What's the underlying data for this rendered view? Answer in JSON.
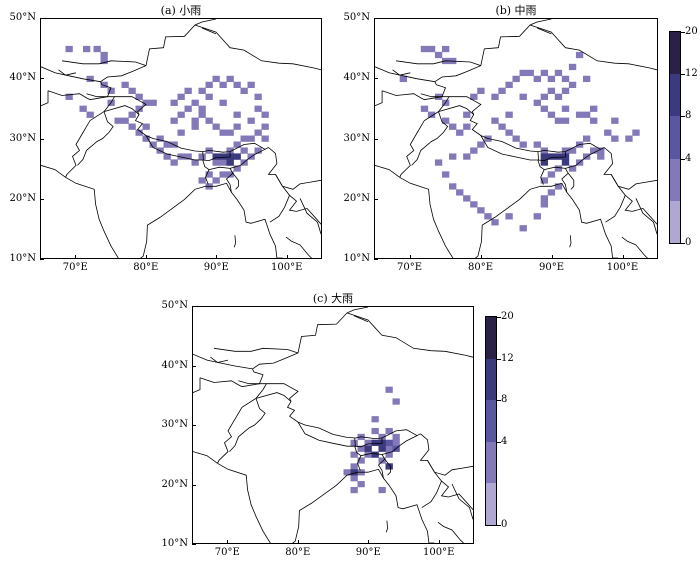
{
  "panels": {
    "a": {
      "title": "(a) 小雨"
    },
    "b": {
      "title": "(b) 中雨"
    },
    "c": {
      "title": "(c) 大雨"
    }
  },
  "axes": {
    "lat_labels": [
      "50°N",
      "40°N",
      "30°N",
      "20°N",
      "10°N"
    ],
    "lon_labels": [
      "70°E",
      "80°E",
      "90°E",
      "100°E"
    ],
    "lat_range": [
      10,
      50
    ],
    "lon_range": [
      65,
      105
    ]
  },
  "colorbar": {
    "labels": [
      "20",
      "12",
      "8",
      "4",
      "0"
    ],
    "colors": [
      "#2b2146",
      "#3c3a7e",
      "#5a56a0",
      "#8479b8",
      "#b1a7d3"
    ]
  },
  "map_data": {
    "panel_a_cells": [
      [
        69,
        45
      ],
      [
        71.5,
        45
      ],
      [
        73,
        45
      ],
      [
        74,
        44
      ],
      [
        74,
        43
      ],
      [
        69,
        37
      ],
      [
        72,
        40
      ],
      [
        74,
        39
      ],
      [
        75,
        38
      ],
      [
        77,
        39
      ],
      [
        78,
        38
      ],
      [
        79,
        37
      ],
      [
        84,
        36
      ],
      [
        84,
        33
      ],
      [
        85,
        34
      ],
      [
        86,
        35
      ],
      [
        87,
        36
      ],
      [
        88,
        35
      ],
      [
        88,
        34
      ],
      [
        87,
        33
      ],
      [
        89,
        33
      ],
      [
        90,
        32
      ],
      [
        91,
        31
      ],
      [
        92,
        31
      ],
      [
        93,
        32
      ],
      [
        95,
        33
      ],
      [
        96,
        31
      ],
      [
        95,
        30
      ],
      [
        93,
        29
      ],
      [
        92,
        28
      ],
      [
        91,
        27
      ],
      [
        89,
        28
      ],
      [
        88,
        27
      ],
      [
        87,
        26
      ],
      [
        86,
        27
      ],
      [
        85,
        27
      ],
      [
        84,
        26
      ],
      [
        83,
        27
      ],
      [
        82,
        28
      ],
      [
        81,
        29
      ],
      [
        80,
        30
      ],
      [
        79,
        31
      ],
      [
        78,
        32
      ],
      [
        77,
        33
      ],
      [
        76,
        33
      ],
      [
        79,
        35
      ],
      [
        80,
        36
      ],
      [
        81,
        36
      ],
      [
        85,
        37
      ],
      [
        86,
        38
      ],
      [
        88,
        38
      ],
      [
        89,
        39
      ],
      [
        90,
        40
      ],
      [
        91,
        39
      ],
      [
        92,
        40
      ],
      [
        93,
        39
      ],
      [
        94,
        38
      ],
      [
        95,
        39
      ],
      [
        96,
        37
      ],
      [
        96,
        35
      ],
      [
        97,
        34
      ],
      [
        97,
        32
      ],
      [
        97,
        30
      ],
      [
        96,
        28
      ],
      [
        95,
        27
      ],
      [
        94,
        26
      ],
      [
        93,
        25
      ],
      [
        92,
        24
      ],
      [
        91,
        24
      ],
      [
        90,
        23
      ],
      [
        89,
        24
      ],
      [
        88,
        23
      ],
      [
        89,
        22
      ],
      [
        90,
        26
      ],
      [
        90,
        27
      ],
      [
        91,
        26
      ],
      [
        92,
        26
      ],
      [
        93,
        27
      ],
      [
        94,
        28
      ],
      [
        94,
        30
      ],
      [
        93,
        34
      ],
      [
        91,
        36
      ],
      [
        89,
        37
      ],
      [
        87,
        32
      ],
      [
        85,
        31
      ],
      [
        84,
        29
      ],
      [
        83,
        29
      ],
      [
        82,
        30
      ],
      [
        80,
        32
      ],
      [
        78,
        34
      ],
      [
        75,
        36
      ],
      [
        72,
        34
      ],
      [
        71,
        35
      ]
    ],
    "panel_a_dark": [
      [
        91,
        27
      ],
      [
        92,
        27
      ],
      [
        93,
        27
      ],
      [
        90,
        27
      ],
      [
        92,
        26
      ]
    ],
    "panel_b_cells": [
      [
        69,
        40
      ],
      [
        72,
        45
      ],
      [
        73,
        45
      ],
      [
        75,
        45
      ],
      [
        74,
        44
      ],
      [
        75,
        43
      ],
      [
        76,
        43
      ],
      [
        74,
        37
      ],
      [
        75,
        36
      ],
      [
        72,
        35
      ],
      [
        73,
        34
      ],
      [
        75,
        33
      ],
      [
        76,
        32
      ],
      [
        77,
        31
      ],
      [
        78,
        32
      ],
      [
        78,
        34
      ],
      [
        79,
        37
      ],
      [
        82,
        37
      ],
      [
        83,
        38
      ],
      [
        84,
        39
      ],
      [
        85,
        40
      ],
      [
        86,
        41
      ],
      [
        87,
        41
      ],
      [
        88,
        40
      ],
      [
        89,
        41
      ],
      [
        90,
        40
      ],
      [
        91,
        41
      ],
      [
        92,
        40
      ],
      [
        93,
        39
      ],
      [
        92,
        38
      ],
      [
        91,
        37
      ],
      [
        90,
        38
      ],
      [
        89,
        37
      ],
      [
        88,
        36
      ],
      [
        89,
        35
      ],
      [
        90,
        34
      ],
      [
        91,
        33
      ],
      [
        92,
        33
      ],
      [
        95,
        34
      ],
      [
        96,
        35
      ],
      [
        96,
        33
      ],
      [
        99,
        33
      ],
      [
        98,
        31
      ],
      [
        95,
        30
      ],
      [
        94,
        29
      ],
      [
        93,
        28
      ],
      [
        92,
        28
      ],
      [
        91,
        27
      ],
      [
        90,
        27
      ],
      [
        89,
        28
      ],
      [
        88,
        29
      ],
      [
        86,
        29
      ],
      [
        85,
        30
      ],
      [
        84,
        31
      ],
      [
        83,
        32
      ],
      [
        81,
        30
      ],
      [
        80,
        29
      ],
      [
        79,
        28
      ],
      [
        78,
        27
      ],
      [
        76,
        27
      ],
      [
        74,
        26
      ],
      [
        75,
        24
      ],
      [
        76,
        22
      ],
      [
        77,
        21
      ],
      [
        78,
        20
      ],
      [
        79,
        19
      ],
      [
        80,
        18
      ],
      [
        81,
        17
      ],
      [
        82,
        16
      ],
      [
        84,
        17
      ],
      [
        86,
        15
      ],
      [
        88,
        17
      ],
      [
        89,
        19
      ],
      [
        89,
        23
      ],
      [
        90,
        24
      ],
      [
        91,
        25
      ],
      [
        93,
        25
      ],
      [
        94,
        26
      ],
      [
        95,
        27
      ],
      [
        96,
        28
      ],
      [
        97,
        28
      ],
      [
        97,
        27
      ],
      [
        91,
        22
      ],
      [
        90,
        21
      ],
      [
        89,
        20
      ],
      [
        99,
        30
      ],
      [
        101,
        30
      ],
      [
        102,
        31
      ],
      [
        94,
        34
      ],
      [
        92,
        35
      ],
      [
        86,
        37
      ],
      [
        84,
        34
      ],
      [
        82,
        33
      ],
      [
        80,
        38
      ],
      [
        93,
        42
      ],
      [
        94,
        44
      ],
      [
        95,
        40
      ]
    ],
    "panel_b_dark": [
      [
        89,
        27
      ],
      [
        90,
        27
      ],
      [
        91,
        27
      ],
      [
        92,
        27
      ],
      [
        92,
        26
      ],
      [
        89,
        26
      ]
    ],
    "panel_c_cells": [
      [
        93,
        36
      ],
      [
        94,
        34
      ],
      [
        91,
        31
      ],
      [
        91,
        29
      ],
      [
        90,
        27
      ],
      [
        91,
        27
      ],
      [
        89,
        26
      ],
      [
        88,
        25
      ],
      [
        89,
        24
      ],
      [
        90,
        25
      ],
      [
        88,
        23
      ],
      [
        89,
        22
      ],
      [
        87,
        22
      ],
      [
        88,
        21
      ],
      [
        89,
        20
      ],
      [
        88,
        19
      ],
      [
        92,
        19
      ],
      [
        93,
        26
      ],
      [
        94,
        27
      ],
      [
        94,
        28
      ],
      [
        93,
        25
      ],
      [
        92,
        24
      ],
      [
        93,
        23
      ],
      [
        89,
        28
      ],
      [
        88,
        27
      ],
      [
        92,
        28
      ],
      [
        93,
        29
      ]
    ],
    "panel_c_dark": [
      [
        91,
        27
      ],
      [
        92,
        27
      ],
      [
        90,
        26
      ],
      [
        92,
        26
      ],
      [
        91,
        25
      ],
      [
        93,
        23
      ],
      [
        88,
        22
      ]
    ],
    "panel_c_mid": [
      [
        93,
        27
      ],
      [
        94,
        26
      ]
    ]
  }
}
